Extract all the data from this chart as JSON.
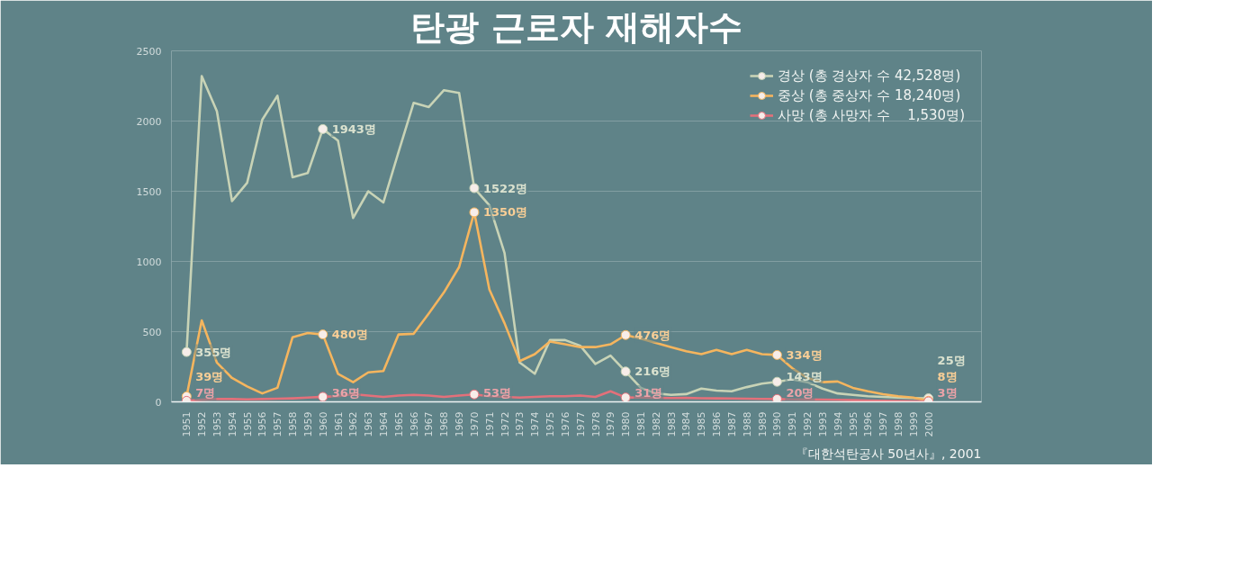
{
  "chart_data": {
    "type": "line",
    "title": "탄광 근로자 재해자수",
    "x": [
      1951,
      1952,
      1953,
      1954,
      1955,
      1956,
      1957,
      1958,
      1959,
      1960,
      1961,
      1962,
      1963,
      1964,
      1965,
      1966,
      1967,
      1968,
      1969,
      1970,
      1971,
      1972,
      1973,
      1974,
      1975,
      1976,
      1977,
      1978,
      1979,
      1980,
      1981,
      1982,
      1983,
      1984,
      1985,
      1986,
      1987,
      1988,
      1989,
      1990,
      1991,
      1992,
      1993,
      1994,
      1995,
      1996,
      1997,
      1998,
      1999,
      2000
    ],
    "xlim": [
      1950,
      2003.5
    ],
    "xticks": [
      1951,
      1952,
      1953,
      1954,
      1955,
      1956,
      1957,
      1958,
      1959,
      1960,
      1961,
      1962,
      1963,
      1964,
      1965,
      1966,
      1967,
      1968,
      1969,
      1970,
      1971,
      1972,
      1973,
      1974,
      1975,
      1976,
      1977,
      1978,
      1979,
      1980,
      1981,
      1982,
      1983,
      1984,
      1985,
      1986,
      1987,
      1988,
      1989,
      1990,
      1991,
      1992,
      1993,
      1994,
      1995,
      1996,
      1997,
      1998,
      1999,
      2000
    ],
    "ylim": [
      0,
      2500
    ],
    "yticks": [
      0,
      500,
      1000,
      1500,
      2000,
      2500
    ],
    "grid": "y",
    "legend": "top right",
    "line_style": "solid",
    "series": [
      {
        "name": "경상 (총 경상자 수 42,528명)",
        "color": "#c8d3b6",
        "values": [
          355,
          2320,
          2070,
          1430,
          1560,
          2010,
          2180,
          1600,
          1630,
          1943,
          1860,
          1310,
          1500,
          1420,
          1780,
          2130,
          2100,
          2220,
          2200,
          1522,
          1400,
          1060,
          280,
          200,
          440,
          440,
          400,
          270,
          330,
          216,
          100,
          60,
          50,
          55,
          95,
          80,
          75,
          105,
          130,
          143,
          160,
          140,
          95,
          60,
          50,
          40,
          35,
          30,
          27,
          25
        ],
        "value_labels": [
          "355명",
          null,
          null,
          null,
          null,
          null,
          null,
          null,
          null,
          "1943명",
          null,
          null,
          null,
          null,
          null,
          null,
          null,
          null,
          null,
          "1522명",
          null,
          null,
          null,
          null,
          null,
          null,
          null,
          null,
          null,
          "216명",
          null,
          null,
          null,
          null,
          null,
          null,
          null,
          null,
          null,
          "143명",
          null,
          null,
          null,
          null,
          null,
          null,
          null,
          null,
          null,
          "25명"
        ]
      },
      {
        "name": "중상 (총 중상자 수 18,240명)",
        "color": "#f5b55e",
        "values": [
          39,
          580,
          280,
          170,
          110,
          60,
          100,
          460,
          490,
          480,
          200,
          140,
          210,
          220,
          480,
          485,
          630,
          780,
          960,
          1350,
          800,
          560,
          290,
          340,
          430,
          410,
          390,
          390,
          410,
          476,
          450,
          420,
          390,
          360,
          340,
          370,
          340,
          370,
          340,
          334,
          240,
          170,
          140,
          145,
          100,
          75,
          55,
          40,
          30,
          8
        ],
        "value_labels": [
          "39명",
          null,
          null,
          null,
          null,
          null,
          null,
          null,
          null,
          "480명",
          null,
          null,
          null,
          null,
          null,
          null,
          null,
          null,
          null,
          "1350명",
          null,
          null,
          null,
          null,
          null,
          null,
          null,
          null,
          null,
          "476명",
          null,
          null,
          null,
          null,
          null,
          null,
          null,
          null,
          null,
          "334명",
          null,
          null,
          null,
          null,
          null,
          null,
          null,
          null,
          null,
          "8명"
        ]
      },
      {
        "name": "사망 (총 사망자 수    1,530명)",
        "color": "#e3707a",
        "values": [
          7,
          15,
          20,
          20,
          18,
          20,
          22,
          25,
          30,
          36,
          40,
          55,
          45,
          35,
          45,
          50,
          45,
          35,
          45,
          53,
          40,
          35,
          30,
          35,
          40,
          40,
          45,
          35,
          75,
          31,
          30,
          28,
          27,
          28,
          26,
          25,
          24,
          22,
          21,
          20,
          18,
          17,
          16,
          14,
          12,
          10,
          8,
          6,
          5,
          3
        ],
        "value_labels": [
          "7명",
          null,
          null,
          null,
          null,
          null,
          null,
          null,
          null,
          "36명",
          null,
          null,
          null,
          null,
          null,
          null,
          null,
          null,
          null,
          "53명",
          null,
          null,
          null,
          null,
          null,
          null,
          null,
          null,
          null,
          "31명",
          null,
          null,
          null,
          null,
          null,
          null,
          null,
          null,
          null,
          "20명",
          null,
          null,
          null,
          null,
          null,
          null,
          null,
          null,
          null,
          "3명"
        ]
      }
    ],
    "annotations": [
      "『대한석탄공사 50년사』, 2001"
    ]
  }
}
